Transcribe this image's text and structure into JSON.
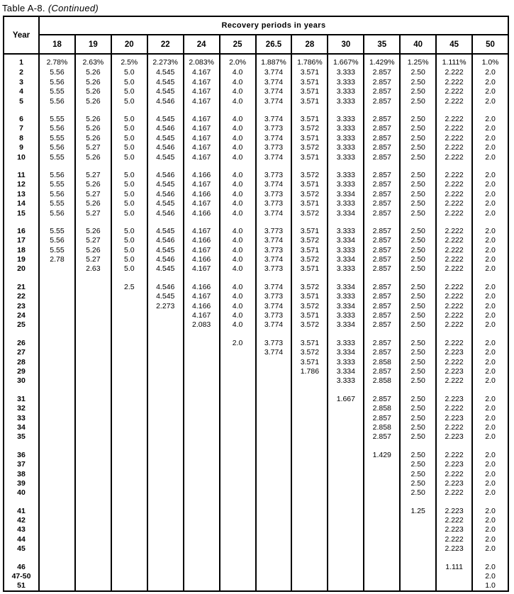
{
  "title": {
    "label": "Table A-8.",
    "continued": "(Continued)"
  },
  "table": {
    "year_header": "Year",
    "span_header": "Recovery periods in years",
    "period_columns": [
      "18",
      "19",
      "20",
      "22",
      "24",
      "25",
      "26.5",
      "28",
      "30",
      "35",
      "40",
      "45",
      "50"
    ],
    "groups": [
      {
        "rows": [
          {
            "year": "1",
            "values": [
              "2.78%",
              "2.63%",
              "2.5%",
              "2.273%",
              "2.083%",
              "2.0%",
              "1.887%",
              "1.786%",
              "1.667%",
              "1.429%",
              "1.25%",
              "1.111%",
              "1.0%"
            ]
          },
          {
            "year": "2",
            "values": [
              "5.56",
              "5.26",
              "5.0",
              "4.545",
              "4.167",
              "4.0",
              "3.774",
              "3.571",
              "3.333",
              "2.857",
              "2.50",
              "2.222",
              "2.0"
            ]
          },
          {
            "year": "3",
            "values": [
              "5.56",
              "5.26",
              "5.0",
              "4.545",
              "4.167",
              "4.0",
              "3.774",
              "3.571",
              "3.333",
              "2.857",
              "2.50",
              "2.222",
              "2.0"
            ]
          },
          {
            "year": "4",
            "values": [
              "5.55",
              "5.26",
              "5.0",
              "4.545",
              "4.167",
              "4.0",
              "3.774",
              "3.571",
              "3.333",
              "2.857",
              "2.50",
              "2.222",
              "2.0"
            ]
          },
          {
            "year": "5",
            "values": [
              "5.56",
              "5.26",
              "5.0",
              "4.546",
              "4.167",
              "4.0",
              "3.774",
              "3.571",
              "3.333",
              "2.857",
              "2.50",
              "2.222",
              "2.0"
            ]
          }
        ]
      },
      {
        "rows": [
          {
            "year": "6",
            "values": [
              "5.55",
              "5.26",
              "5.0",
              "4.545",
              "4.167",
              "4.0",
              "3.774",
              "3.571",
              "3.333",
              "2.857",
              "2.50",
              "2.222",
              "2.0"
            ]
          },
          {
            "year": "7",
            "values": [
              "5.56",
              "5.26",
              "5.0",
              "4.546",
              "4.167",
              "4.0",
              "3.773",
              "3.572",
              "3.333",
              "2.857",
              "2.50",
              "2.222",
              "2.0"
            ]
          },
          {
            "year": "8",
            "values": [
              "5.55",
              "5.26",
              "5.0",
              "4.545",
              "4.167",
              "4.0",
              "3.774",
              "3.571",
              "3.333",
              "2.857",
              "2.50",
              "2.222",
              "2.0"
            ]
          },
          {
            "year": "9",
            "values": [
              "5.56",
              "5.27",
              "5.0",
              "4.546",
              "4.167",
              "4.0",
              "3.773",
              "3.572",
              "3.333",
              "2.857",
              "2.50",
              "2.222",
              "2.0"
            ]
          },
          {
            "year": "10",
            "values": [
              "5.55",
              "5.26",
              "5.0",
              "4.545",
              "4.167",
              "4.0",
              "3.774",
              "3.571",
              "3.333",
              "2.857",
              "2.50",
              "2.222",
              "2.0"
            ]
          }
        ]
      },
      {
        "rows": [
          {
            "year": "11",
            "values": [
              "5.56",
              "5.27",
              "5.0",
              "4.546",
              "4.166",
              "4.0",
              "3.773",
              "3.572",
              "3.333",
              "2.857",
              "2.50",
              "2.222",
              "2.0"
            ]
          },
          {
            "year": "12",
            "values": [
              "5.55",
              "5.26",
              "5.0",
              "4.545",
              "4.167",
              "4.0",
              "3.774",
              "3.571",
              "3.333",
              "2.857",
              "2.50",
              "2.222",
              "2.0"
            ]
          },
          {
            "year": "13",
            "values": [
              "5.56",
              "5.27",
              "5.0",
              "4.546",
              "4.166",
              "4.0",
              "3.773",
              "3.572",
              "3.334",
              "2.857",
              "2.50",
              "2.222",
              "2.0"
            ]
          },
          {
            "year": "14",
            "values": [
              "5.55",
              "5.26",
              "5.0",
              "4.545",
              "4.167",
              "4.0",
              "3.773",
              "3.571",
              "3.333",
              "2.857",
              "2.50",
              "2.222",
              "2.0"
            ]
          },
          {
            "year": "15",
            "values": [
              "5.56",
              "5.27",
              "5.0",
              "4.546",
              "4.166",
              "4.0",
              "3.774",
              "3.572",
              "3.334",
              "2.857",
              "2.50",
              "2.222",
              "2.0"
            ]
          }
        ]
      },
      {
        "rows": [
          {
            "year": "16",
            "values": [
              "5.55",
              "5.26",
              "5.0",
              "4.545",
              "4.167",
              "4.0",
              "3.773",
              "3.571",
              "3.333",
              "2.857",
              "2.50",
              "2.222",
              "2.0"
            ]
          },
          {
            "year": "17",
            "values": [
              "5.56",
              "5.27",
              "5.0",
              "4.546",
              "4.166",
              "4.0",
              "3.774",
              "3.572",
              "3.334",
              "2.857",
              "2.50",
              "2.222",
              "2.0"
            ]
          },
          {
            "year": "18",
            "values": [
              "5.55",
              "5.26",
              "5.0",
              "4.545",
              "4.167",
              "4.0",
              "3.773",
              "3.571",
              "3.333",
              "2.857",
              "2.50",
              "2.222",
              "2.0"
            ]
          },
          {
            "year": "19",
            "values": [
              "2.78",
              "5.27",
              "5.0",
              "4.546",
              "4.166",
              "4.0",
              "3.774",
              "3.572",
              "3.334",
              "2.857",
              "2.50",
              "2.222",
              "2.0"
            ]
          },
          {
            "year": "20",
            "values": [
              "",
              "2.63",
              "5.0",
              "4.545",
              "4.167",
              "4.0",
              "3.773",
              "3.571",
              "3.333",
              "2.857",
              "2.50",
              "2.222",
              "2.0"
            ]
          }
        ]
      },
      {
        "rows": [
          {
            "year": "21",
            "values": [
              "",
              "",
              "2.5",
              "4.546",
              "4.166",
              "4.0",
              "3.774",
              "3.572",
              "3.334",
              "2.857",
              "2.50",
              "2.222",
              "2.0"
            ]
          },
          {
            "year": "22",
            "values": [
              "",
              "",
              "",
              "4.545",
              "4.167",
              "4.0",
              "3.773",
              "3.571",
              "3.333",
              "2.857",
              "2.50",
              "2.222",
              "2.0"
            ]
          },
          {
            "year": "23",
            "values": [
              "",
              "",
              "",
              "2.273",
              "4.166",
              "4.0",
              "3.774",
              "3.572",
              "3.334",
              "2.857",
              "2.50",
              "2.222",
              "2.0"
            ]
          },
          {
            "year": "24",
            "values": [
              "",
              "",
              "",
              "",
              "4.167",
              "4.0",
              "3.773",
              "3.571",
              "3.333",
              "2.857",
              "2.50",
              "2.222",
              "2.0"
            ]
          },
          {
            "year": "25",
            "values": [
              "",
              "",
              "",
              "",
              "2.083",
              "4.0",
              "3.774",
              "3.572",
              "3.334",
              "2.857",
              "2.50",
              "2.222",
              "2.0"
            ]
          }
        ]
      },
      {
        "rows": [
          {
            "year": "26",
            "values": [
              "",
              "",
              "",
              "",
              "",
              "2.0",
              "3.773",
              "3.571",
              "3.333",
              "2.857",
              "2.50",
              "2.222",
              "2.0"
            ]
          },
          {
            "year": "27",
            "values": [
              "",
              "",
              "",
              "",
              "",
              "",
              "3.774",
              "3.572",
              "3.334",
              "2.857",
              "2.50",
              "2.223",
              "2.0"
            ]
          },
          {
            "year": "28",
            "values": [
              "",
              "",
              "",
              "",
              "",
              "",
              "",
              "3.571",
              "3.333",
              "2.858",
              "2.50",
              "2.222",
              "2.0"
            ]
          },
          {
            "year": "29",
            "values": [
              "",
              "",
              "",
              "",
              "",
              "",
              "",
              "1.786",
              "3.334",
              "2.857",
              "2.50",
              "2.223",
              "2.0"
            ]
          },
          {
            "year": "30",
            "values": [
              "",
              "",
              "",
              "",
              "",
              "",
              "",
              "",
              "3.333",
              "2.858",
              "2.50",
              "2.222",
              "2.0"
            ]
          }
        ]
      },
      {
        "rows": [
          {
            "year": "31",
            "values": [
              "",
              "",
              "",
              "",
              "",
              "",
              "",
              "",
              "1.667",
              "2.857",
              "2.50",
              "2.223",
              "2.0"
            ]
          },
          {
            "year": "32",
            "values": [
              "",
              "",
              "",
              "",
              "",
              "",
              "",
              "",
              "",
              "2.858",
              "2.50",
              "2.222",
              "2.0"
            ]
          },
          {
            "year": "33",
            "values": [
              "",
              "",
              "",
              "",
              "",
              "",
              "",
              "",
              "",
              "2.857",
              "2.50",
              "2.223",
              "2.0"
            ]
          },
          {
            "year": "34",
            "values": [
              "",
              "",
              "",
              "",
              "",
              "",
              "",
              "",
              "",
              "2.858",
              "2.50",
              "2.222",
              "2.0"
            ]
          },
          {
            "year": "35",
            "values": [
              "",
              "",
              "",
              "",
              "",
              "",
              "",
              "",
              "",
              "2.857",
              "2.50",
              "2.223",
              "2.0"
            ]
          }
        ]
      },
      {
        "rows": [
          {
            "year": "36",
            "values": [
              "",
              "",
              "",
              "",
              "",
              "",
              "",
              "",
              "",
              "1.429",
              "2.50",
              "2.222",
              "2.0"
            ]
          },
          {
            "year": "37",
            "values": [
              "",
              "",
              "",
              "",
              "",
              "",
              "",
              "",
              "",
              "",
              "2.50",
              "2.223",
              "2.0"
            ]
          },
          {
            "year": "38",
            "values": [
              "",
              "",
              "",
              "",
              "",
              "",
              "",
              "",
              "",
              "",
              "2.50",
              "2.222",
              "2.0"
            ]
          },
          {
            "year": "39",
            "values": [
              "",
              "",
              "",
              "",
              "",
              "",
              "",
              "",
              "",
              "",
              "2.50",
              "2.223",
              "2.0"
            ]
          },
          {
            "year": "40",
            "values": [
              "",
              "",
              "",
              "",
              "",
              "",
              "",
              "",
              "",
              "",
              "2.50",
              "2.222",
              "2.0"
            ]
          }
        ]
      },
      {
        "rows": [
          {
            "year": "41",
            "values": [
              "",
              "",
              "",
              "",
              "",
              "",
              "",
              "",
              "",
              "",
              "1.25",
              "2.223",
              "2.0"
            ]
          },
          {
            "year": "42",
            "values": [
              "",
              "",
              "",
              "",
              "",
              "",
              "",
              "",
              "",
              "",
              "",
              "2.222",
              "2.0"
            ]
          },
          {
            "year": "43",
            "values": [
              "",
              "",
              "",
              "",
              "",
              "",
              "",
              "",
              "",
              "",
              "",
              "2.223",
              "2.0"
            ]
          },
          {
            "year": "44",
            "values": [
              "",
              "",
              "",
              "",
              "",
              "",
              "",
              "",
              "",
              "",
              "",
              "2.222",
              "2.0"
            ]
          },
          {
            "year": "45",
            "values": [
              "",
              "",
              "",
              "",
              "",
              "",
              "",
              "",
              "",
              "",
              "",
              "2.223",
              "2.0"
            ]
          }
        ]
      },
      {
        "rows": [
          {
            "year": "46",
            "values": [
              "",
              "",
              "",
              "",
              "",
              "",
              "",
              "",
              "",
              "",
              "",
              "1.111",
              "2.0"
            ]
          },
          {
            "year": "47-50",
            "values": [
              "",
              "",
              "",
              "",
              "",
              "",
              "",
              "",
              "",
              "",
              "",
              "",
              "2.0"
            ]
          },
          {
            "year": "51",
            "values": [
              "",
              "",
              "",
              "",
              "",
              "",
              "",
              "",
              "",
              "",
              "",
              "",
              "1.0"
            ]
          }
        ]
      }
    ]
  }
}
